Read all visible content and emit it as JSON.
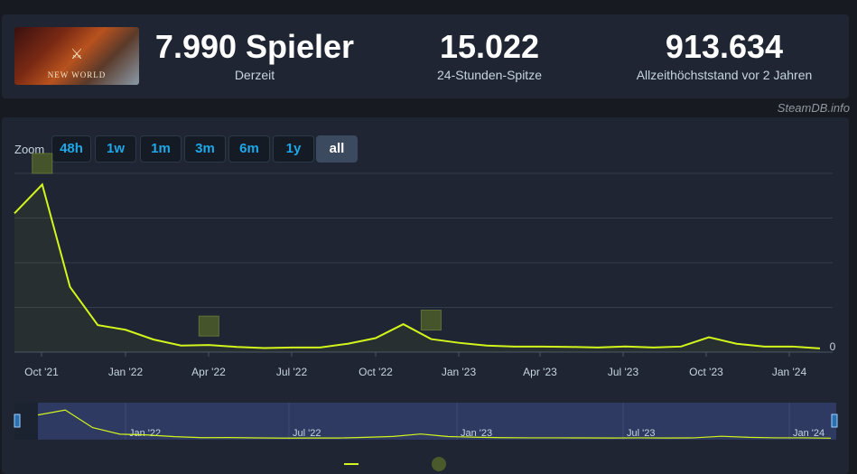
{
  "header": {
    "game_logo": "NEW WORLD",
    "current": {
      "value": "7.990 Spieler",
      "label": "Derzeit"
    },
    "peak24": {
      "value": "15.022",
      "label": "24-Stunden-Spitze"
    },
    "alltime": {
      "value": "913.634",
      "label": "Allzeithöchststand vor 2 Jahren"
    }
  },
  "watermark": "SteamDB.info",
  "zoom": {
    "label": "Zoom",
    "buttons": [
      "48h",
      "1w",
      "1m",
      "3m",
      "6m",
      "1y",
      "all"
    ],
    "active": "all"
  },
  "chart_data": {
    "type": "line",
    "x_ticks": [
      "Oct '21",
      "Jan '22",
      "Apr '22",
      "Jul '22",
      "Oct '22",
      "Jan '23",
      "Apr '23",
      "Jul '23",
      "Oct '23",
      "Jan '24"
    ],
    "y_tick_labels": [
      "0"
    ],
    "x": [
      "2021-09",
      "2021-10",
      "2021-11",
      "2021-12",
      "2022-01",
      "2022-02",
      "2022-03",
      "2022-04",
      "2022-05",
      "2022-06",
      "2022-07",
      "2022-08",
      "2022-09",
      "2022-10",
      "2022-11",
      "2022-12",
      "2023-01",
      "2023-02",
      "2023-03",
      "2023-04",
      "2023-05",
      "2023-06",
      "2023-07",
      "2023-08",
      "2023-09",
      "2023-10",
      "2023-11",
      "2023-12",
      "2024-01",
      "2024-02"
    ],
    "series": [
      {
        "values": [
          745,
          900,
          350,
          145,
          120,
          68,
          35,
          38,
          28,
          22,
          25,
          25,
          45,
          75,
          150,
          70,
          50,
          35,
          30,
          30,
          28,
          25,
          30,
          25,
          30,
          80,
          45,
          30,
          30,
          20
        ]
      }
    ],
    "events_x": [
      "2021-10",
      "2022-04",
      "2022-12"
    ],
    "navigator_ticks": [
      "Jan '22",
      "Jul '22",
      "Jan '23",
      "Jul '23",
      "Jan '24"
    ],
    "line_color": "#d2f51c",
    "grid": true
  }
}
